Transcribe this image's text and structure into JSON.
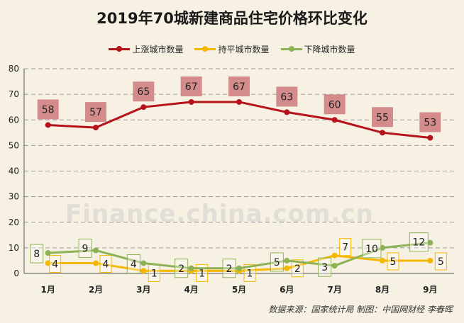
{
  "chart_data": {
    "type": "line",
    "title": "2019年70城新建商品住宅价格环比变化",
    "categories": [
      "1月",
      "2月",
      "3月",
      "4月",
      "5月",
      "6月",
      "7月",
      "8月",
      "9月"
    ],
    "ylim": [
      0,
      80
    ],
    "yticks": [
      0,
      10,
      20,
      30,
      40,
      50,
      60,
      70,
      80
    ],
    "grid": true,
    "legend_position": "top",
    "series": [
      {
        "name": "上涨城市数量",
        "color": "#b5121b",
        "values": [
          58,
          57,
          65,
          67,
          67,
          63,
          60,
          55,
          53
        ]
      },
      {
        "name": "持平城市数量",
        "color": "#f5b800",
        "values": [
          4,
          4,
          1,
          1,
          1,
          2,
          7,
          5,
          5
        ]
      },
      {
        "name": "下降城市数量",
        "color": "#8db255",
        "values": [
          8,
          9,
          4,
          2,
          2,
          5,
          3,
          10,
          12
        ]
      }
    ]
  },
  "watermark": "Finance.china.com.cn",
  "source_note": "数据来源：国家统计局  制图：中国网财经 李春晖"
}
